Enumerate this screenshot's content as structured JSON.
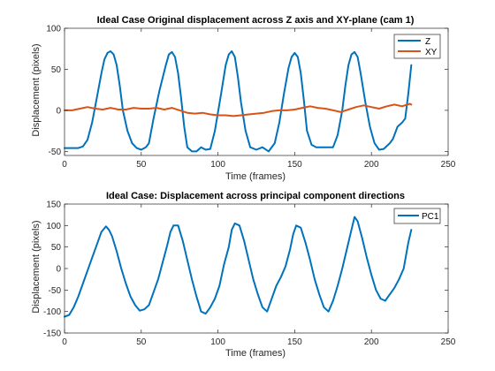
{
  "chart_data": [
    {
      "type": "line",
      "title": "Ideal Case Original displacement across Z axis and XY-plane (cam 1)",
      "xlabel": "Time (frames)",
      "ylabel": "Displacement (pixels)",
      "xlim": [
        0,
        250
      ],
      "ylim": [
        -55,
        100
      ],
      "xticks": [
        0,
        50,
        100,
        150,
        200,
        250
      ],
      "yticks": [
        -50,
        0,
        50,
        100
      ],
      "grid": false,
      "legend_position": "top-right",
      "series": [
        {
          "name": "Z",
          "color": "#0072BD",
          "x": [
            0,
            3,
            6,
            9,
            12,
            15,
            18,
            21,
            24,
            26,
            28,
            30,
            32,
            34,
            36,
            38,
            41,
            44,
            47,
            50,
            53,
            55,
            58,
            62,
            66,
            68,
            70,
            72,
            74,
            76,
            78,
            80,
            83,
            86,
            89,
            92,
            95,
            98,
            102,
            105,
            107,
            109,
            111,
            113,
            115,
            118,
            121,
            125,
            129,
            133,
            137,
            140,
            143,
            146,
            148,
            150,
            152,
            154,
            156,
            158,
            161,
            164,
            167,
            171,
            175,
            178,
            181,
            183,
            185,
            187,
            189,
            191,
            193,
            196,
            199,
            202,
            205,
            208,
            212,
            214,
            217,
            220,
            222,
            224,
            226
          ],
          "y": [
            -46,
            -46,
            -46,
            -46,
            -44,
            -36,
            -15,
            15,
            45,
            62,
            70,
            72,
            68,
            55,
            30,
            0,
            -25,
            -40,
            -46,
            -48,
            -45,
            -40,
            -10,
            25,
            55,
            68,
            71,
            65,
            45,
            15,
            -20,
            -45,
            -50,
            -50,
            -45,
            -48,
            -47,
            -25,
            20,
            55,
            68,
            72,
            65,
            40,
            10,
            -25,
            -45,
            -48,
            -45,
            -50,
            -40,
            -15,
            20,
            52,
            65,
            70,
            65,
            45,
            12,
            -25,
            -42,
            -45,
            -45,
            -45,
            -45,
            -30,
            0,
            30,
            55,
            68,
            71,
            65,
            45,
            10,
            -20,
            -40,
            -48,
            -47,
            -40,
            -35,
            -20,
            -15,
            -10,
            20,
            55
          ]
        },
        {
          "name": "XY",
          "color": "#D95319",
          "x": [
            0,
            5,
            10,
            15,
            20,
            25,
            30,
            35,
            40,
            45,
            50,
            55,
            60,
            65,
            70,
            75,
            80,
            85,
            90,
            95,
            100,
            105,
            110,
            115,
            120,
            125,
            130,
            135,
            140,
            145,
            150,
            155,
            160,
            165,
            170,
            175,
            180,
            185,
            190,
            195,
            200,
            205,
            210,
            215,
            220,
            225,
            226
          ],
          "y": [
            0,
            0,
            2,
            4,
            2,
            1,
            3,
            1,
            1,
            3,
            2,
            2,
            3,
            1,
            3,
            0,
            -3,
            -4,
            -3,
            -5,
            -6,
            -6,
            -7,
            -6,
            -5,
            -4,
            -3,
            -1,
            0,
            0,
            1,
            3,
            5,
            3,
            2,
            0,
            -2,
            1,
            4,
            6,
            4,
            2,
            5,
            7,
            5,
            8,
            7
          ]
        }
      ]
    },
    {
      "type": "line",
      "title": "Ideal Case: Displacement across principal component directions",
      "xlabel": "Time (frames)",
      "ylabel": "Displacement (pixels)",
      "xlim": [
        0,
        250
      ],
      "ylim": [
        -150,
        150
      ],
      "xticks": [
        0,
        50,
        100,
        150,
        200,
        250
      ],
      "yticks": [
        -150,
        -100,
        -50,
        0,
        50,
        100,
        150
      ],
      "grid": false,
      "legend_position": "top-right",
      "series": [
        {
          "name": "PC1",
          "color": "#0072BD",
          "x": [
            0,
            3,
            6,
            9,
            12,
            15,
            18,
            21,
            24,
            27,
            29,
            31,
            34,
            37,
            40,
            43,
            46,
            49,
            52,
            55,
            58,
            61,
            64,
            67,
            69,
            71,
            74,
            77,
            80,
            83,
            86,
            89,
            92,
            95,
            98,
            101,
            104,
            107,
            109,
            111,
            114,
            117,
            120,
            123,
            126,
            129,
            132,
            135,
            138,
            141,
            144,
            147,
            149,
            151,
            154,
            157,
            160,
            163,
            166,
            169,
            172,
            175,
            178,
            181,
            184,
            187,
            189,
            191,
            194,
            197,
            200,
            203,
            206,
            209,
            212,
            215,
            218,
            221,
            224,
            226
          ],
          "y": [
            -112,
            -108,
            -90,
            -65,
            -35,
            -5,
            25,
            55,
            85,
            98,
            90,
            75,
            40,
            0,
            -35,
            -65,
            -85,
            -98,
            -95,
            -85,
            -55,
            -25,
            15,
            55,
            85,
            100,
            100,
            65,
            20,
            -25,
            -65,
            -100,
            -105,
            -90,
            -70,
            -40,
            10,
            50,
            90,
            105,
            100,
            65,
            20,
            -25,
            -60,
            -90,
            -100,
            -70,
            -40,
            -20,
            5,
            45,
            80,
            100,
            95,
            60,
            20,
            -25,
            -60,
            -90,
            -100,
            -75,
            -40,
            0,
            45,
            90,
            120,
            110,
            70,
            25,
            -15,
            -50,
            -70,
            -75,
            -60,
            -45,
            -25,
            0,
            60,
            90
          ]
        }
      ]
    }
  ]
}
